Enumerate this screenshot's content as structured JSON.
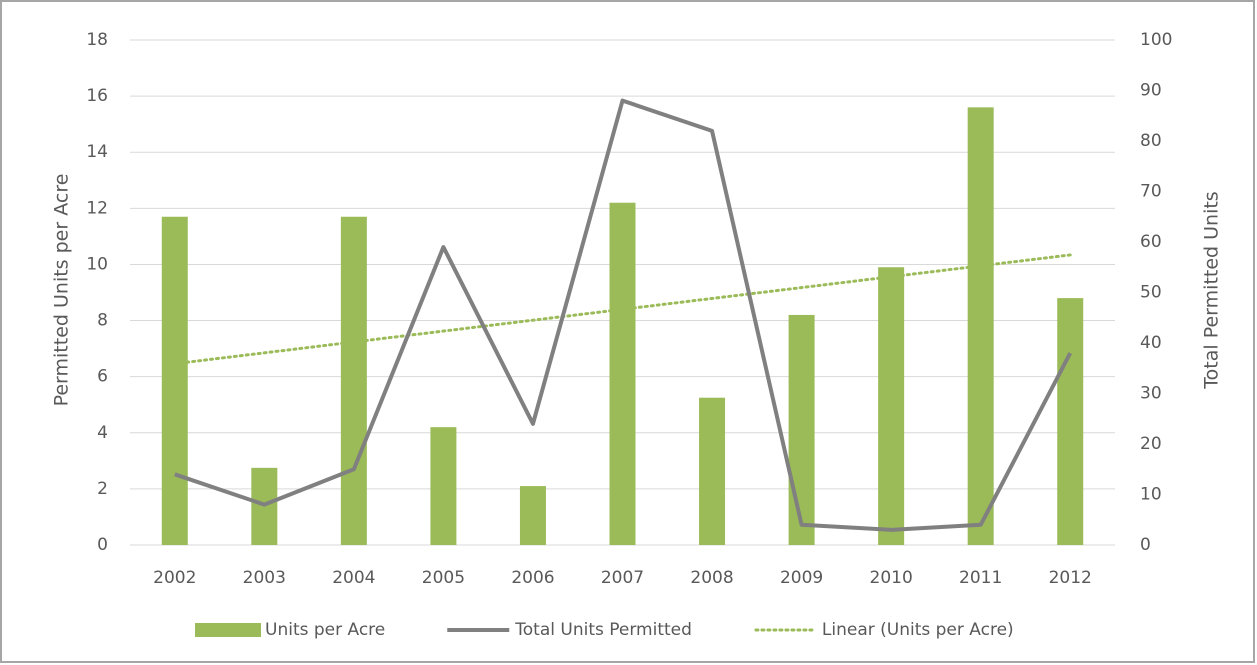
{
  "chart_data": {
    "type": "bar",
    "categories": [
      "2002",
      "2003",
      "2004",
      "2005",
      "2006",
      "2007",
      "2008",
      "2009",
      "2010",
      "2011",
      "2012"
    ],
    "series": [
      {
        "name": "Units per Acre",
        "type": "bar",
        "color": "#9bbb59",
        "values": [
          11.7,
          2.75,
          11.7,
          4.2,
          2.1,
          12.2,
          5.25,
          8.2,
          9.9,
          15.6,
          8.8
        ],
        "trendline": {
          "name": "Linear (Units per Acre)",
          "type": "linear",
          "color": "#9bbb59"
        }
      },
      {
        "name": "Total Units Permitted",
        "type": "line",
        "axis": "y2",
        "color": "#808080",
        "values": [
          14,
          8,
          15,
          59,
          24,
          88,
          82,
          4,
          3,
          4,
          38
        ]
      }
    ],
    "ylabel": "Permitted Units per Acre",
    "y2label": "Total Permitted Units",
    "ylim": [
      0,
      18
    ],
    "yticks": [
      0,
      2,
      4,
      6,
      8,
      10,
      12,
      14,
      16,
      18
    ],
    "y2lim": [
      0,
      100
    ],
    "y2ticks": [
      0,
      10,
      20,
      30,
      40,
      50,
      60,
      70,
      80,
      90,
      100
    ],
    "grid": true,
    "legend": "bottom"
  }
}
